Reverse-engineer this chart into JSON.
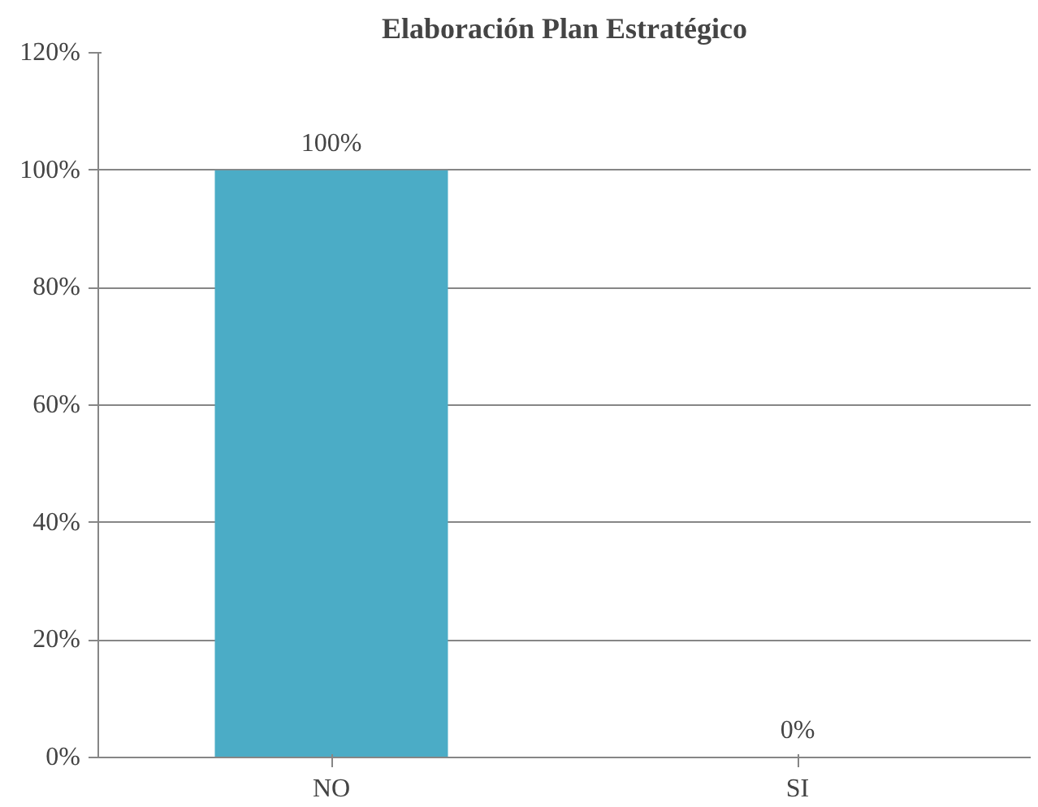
{
  "chart_data": {
    "type": "bar",
    "title": "Elaboración Plan Estratégico",
    "categories": [
      "NO",
      "SI"
    ],
    "values": [
      100,
      0
    ],
    "value_labels": [
      "100%",
      "0%"
    ],
    "color": "#4bacc6",
    "ylim": [
      0,
      120
    ],
    "yticks": [
      {
        "value": 0,
        "label": "0%"
      },
      {
        "value": 20,
        "label": "20%"
      },
      {
        "value": 40,
        "label": "40%"
      },
      {
        "value": 60,
        "label": "60%"
      },
      {
        "value": 80,
        "label": "80%"
      },
      {
        "value": 100,
        "label": "100%"
      },
      {
        "value": 120,
        "label": "120%"
      }
    ],
    "grid": "y"
  }
}
